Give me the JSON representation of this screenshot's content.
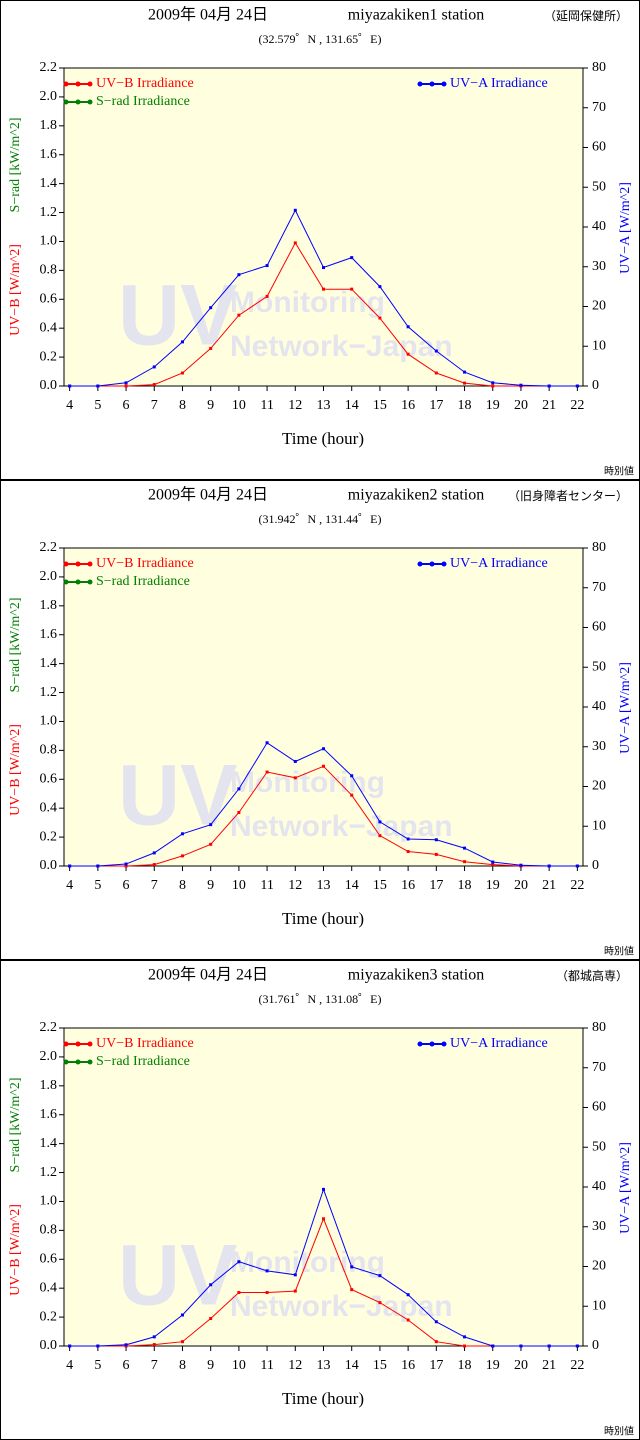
{
  "chart_data": [
    {
      "type": "line",
      "date": "2009年 04月 24日",
      "station": "miyazakiken1 station",
      "place": "（延岡保健所）",
      "subtitle": "(32.579゜N , 131.65゜E)",
      "watermark": [
        "UV",
        "Monitoring",
        "Network−Japan"
      ],
      "note": "時別値",
      "xlabel": "Time (hour)",
      "ylabel": "UV−B [W/m^2]",
      "ylabel_alt": "S−rad [kW/m^2]",
      "y2label": "UV−A [W/m^2]",
      "x": [
        4,
        5,
        6,
        7,
        8,
        9,
        10,
        11,
        12,
        13,
        14,
        15,
        16,
        17,
        18,
        19,
        20,
        21,
        22
      ],
      "xlim": [
        3.8,
        22.2
      ],
      "xticks": [
        4,
        5,
        6,
        7,
        8,
        9,
        10,
        11,
        12,
        13,
        14,
        15,
        16,
        17,
        18,
        19,
        20,
        21,
        22
      ],
      "ylim": [
        0,
        2.2
      ],
      "yticks": [
        {
          "value": 0,
          "label": "0.0"
        },
        {
          "value": 0.2,
          "label": "0.2"
        },
        {
          "value": 0.4,
          "label": "0.4"
        },
        {
          "value": 0.6,
          "label": "0.6"
        },
        {
          "value": 0.8,
          "label": "0.8"
        },
        {
          "value": 1,
          "label": "1.0"
        },
        {
          "value": 1.2,
          "label": "1.2"
        },
        {
          "value": 1.4,
          "label": "1.4"
        },
        {
          "value": 1.6,
          "label": "1.6"
        },
        {
          "value": 1.8,
          "label": "1.8"
        },
        {
          "value": 2,
          "label": "2.0"
        },
        {
          "value": 2.2,
          "label": "2.2"
        }
      ],
      "y2lim": [
        0,
        80
      ],
      "y2ticks": [
        0,
        10,
        20,
        30,
        40,
        50,
        60,
        70,
        80
      ],
      "series": [
        {
          "name": "UV−B Irradiance",
          "color": "#ff0000",
          "axis": "y",
          "values": [
            0,
            0,
            0,
            0.01,
            0.09,
            0.26,
            0.49,
            0.62,
            0.99,
            0.67,
            0.67,
            0.47,
            0.22,
            0.09,
            0.02,
            0,
            0,
            0,
            0
          ]
        },
        {
          "name": "S−rad Irradiance",
          "color": "#008000",
          "axis": "y",
          "values": [
            null,
            null,
            null,
            null,
            null,
            null,
            null,
            null,
            null,
            null,
            null,
            null,
            null,
            null,
            null,
            null,
            null,
            null,
            null
          ]
        },
        {
          "name": "UV−A Irradiance",
          "color": "#0000ff",
          "axis": "y2",
          "values": [
            0,
            0,
            0.8,
            4.8,
            11.1,
            19.7,
            28,
            30.3,
            44.2,
            29.8,
            32.3,
            25,
            14.9,
            8.8,
            3.5,
            0.8,
            0.2,
            0,
            0
          ]
        }
      ]
    },
    {
      "type": "line",
      "date": "2009年 04月 24日",
      "station": "miyazakiken2 station",
      "place": "（旧身障者センター）",
      "subtitle": "(31.942゜N , 131.44゜E)",
      "watermark": [
        "UV",
        "Monitoring",
        "Network−Japan"
      ],
      "note": "時別値",
      "xlabel": "Time (hour)",
      "ylabel": "UV−B [W/m^2]",
      "ylabel_alt": "S−rad [kW/m^2]",
      "y2label": "UV−A [W/m^2]",
      "x": [
        4,
        5,
        6,
        7,
        8,
        9,
        10,
        11,
        12,
        13,
        14,
        15,
        16,
        17,
        18,
        19,
        20,
        21,
        22
      ],
      "xlim": [
        3.8,
        22.2
      ],
      "xticks": [
        4,
        5,
        6,
        7,
        8,
        9,
        10,
        11,
        12,
        13,
        14,
        15,
        16,
        17,
        18,
        19,
        20,
        21,
        22
      ],
      "ylim": [
        0,
        2.2
      ],
      "yticks": [
        {
          "value": 0,
          "label": "0.0"
        },
        {
          "value": 0.2,
          "label": "0.2"
        },
        {
          "value": 0.4,
          "label": "0.4"
        },
        {
          "value": 0.6,
          "label": "0.6"
        },
        {
          "value": 0.8,
          "label": "0.8"
        },
        {
          "value": 1,
          "label": "1.0"
        },
        {
          "value": 1.2,
          "label": "1.2"
        },
        {
          "value": 1.4,
          "label": "1.4"
        },
        {
          "value": 1.6,
          "label": "1.6"
        },
        {
          "value": 1.8,
          "label": "1.8"
        },
        {
          "value": 2,
          "label": "2.0"
        },
        {
          "value": 2.2,
          "label": "2.2"
        }
      ],
      "y2lim": [
        0,
        80
      ],
      "y2ticks": [
        0,
        10,
        20,
        30,
        40,
        50,
        60,
        70,
        80
      ],
      "series": [
        {
          "name": "UV−B Irradiance",
          "color": "#ff0000",
          "axis": "y",
          "values": [
            0,
            0,
            0,
            0.01,
            0.07,
            0.15,
            0.37,
            0.65,
            0.61,
            0.69,
            0.49,
            0.21,
            0.1,
            0.08,
            0.03,
            0.01,
            0,
            0,
            0
          ]
        },
        {
          "name": "S−rad Irradiance",
          "color": "#008000",
          "axis": "y",
          "values": [
            null,
            null,
            null,
            null,
            null,
            null,
            null,
            null,
            null,
            null,
            null,
            null,
            null,
            null,
            null,
            null,
            null,
            null,
            null
          ]
        },
        {
          "name": "UV−A Irradiance",
          "color": "#0000ff",
          "axis": "y2",
          "values": [
            0,
            0,
            0.5,
            3.3,
            8.1,
            10.4,
            19.4,
            31,
            26.3,
            29.5,
            22.7,
            11.1,
            6.8,
            6.6,
            4.5,
            1,
            0.2,
            0,
            0
          ]
        }
      ]
    },
    {
      "type": "line",
      "date": "2009年 04月 24日",
      "station": "miyazakiken3 station",
      "place": "（都城高専）",
      "subtitle": "(31.761゜N , 131.08゜E)",
      "watermark": [
        "UV",
        "Monitoring",
        "Network−Japan"
      ],
      "note": "時別値",
      "xlabel": "Time (hour)",
      "ylabel": "UV−B [W/m^2]",
      "ylabel_alt": "S−rad [kW/m^2]",
      "y2label": "UV−A [W/m^2]",
      "x": [
        4,
        5,
        6,
        7,
        8,
        9,
        10,
        11,
        12,
        13,
        14,
        15,
        16,
        17,
        18,
        19,
        20,
        21,
        22
      ],
      "xlim": [
        3.8,
        22.2
      ],
      "xticks": [
        4,
        5,
        6,
        7,
        8,
        9,
        10,
        11,
        12,
        13,
        14,
        15,
        16,
        17,
        18,
        19,
        20,
        21,
        22
      ],
      "ylim": [
        0,
        2.2
      ],
      "yticks": [
        {
          "value": 0,
          "label": "0.0"
        },
        {
          "value": 0.2,
          "label": "0.2"
        },
        {
          "value": 0.4,
          "label": "0.4"
        },
        {
          "value": 0.6,
          "label": "0.6"
        },
        {
          "value": 0.8,
          "label": "0.8"
        },
        {
          "value": 1,
          "label": "1.0"
        },
        {
          "value": 1.2,
          "label": "1.2"
        },
        {
          "value": 1.4,
          "label": "1.4"
        },
        {
          "value": 1.6,
          "label": "1.6"
        },
        {
          "value": 1.8,
          "label": "1.8"
        },
        {
          "value": 2,
          "label": "2.0"
        },
        {
          "value": 2.2,
          "label": "2.2"
        }
      ],
      "y2lim": [
        0,
        80
      ],
      "y2ticks": [
        0,
        10,
        20,
        30,
        40,
        50,
        60,
        70,
        80
      ],
      "series": [
        {
          "name": "UV−B Irradiance",
          "color": "#ff0000",
          "axis": "y",
          "values": [
            0,
            0,
            0,
            0.01,
            0.03,
            0.19,
            0.37,
            0.37,
            0.38,
            0.88,
            0.39,
            0.3,
            0.18,
            0.03,
            0,
            0,
            0,
            0,
            0
          ]
        },
        {
          "name": "S−rad Irradiance",
          "color": "#008000",
          "axis": "y",
          "values": [
            null,
            null,
            null,
            null,
            null,
            null,
            null,
            null,
            null,
            null,
            null,
            null,
            null,
            null,
            null,
            null,
            null,
            null,
            null
          ]
        },
        {
          "name": "UV−A Irradiance",
          "color": "#0000ff",
          "axis": "y2",
          "values": [
            0,
            0,
            0.3,
            2.3,
            7.8,
            15.4,
            21.2,
            18.9,
            17.9,
            39.4,
            19.9,
            17.7,
            12.9,
            6.1,
            2.3,
            0,
            0,
            0,
            0
          ]
        }
      ]
    }
  ]
}
